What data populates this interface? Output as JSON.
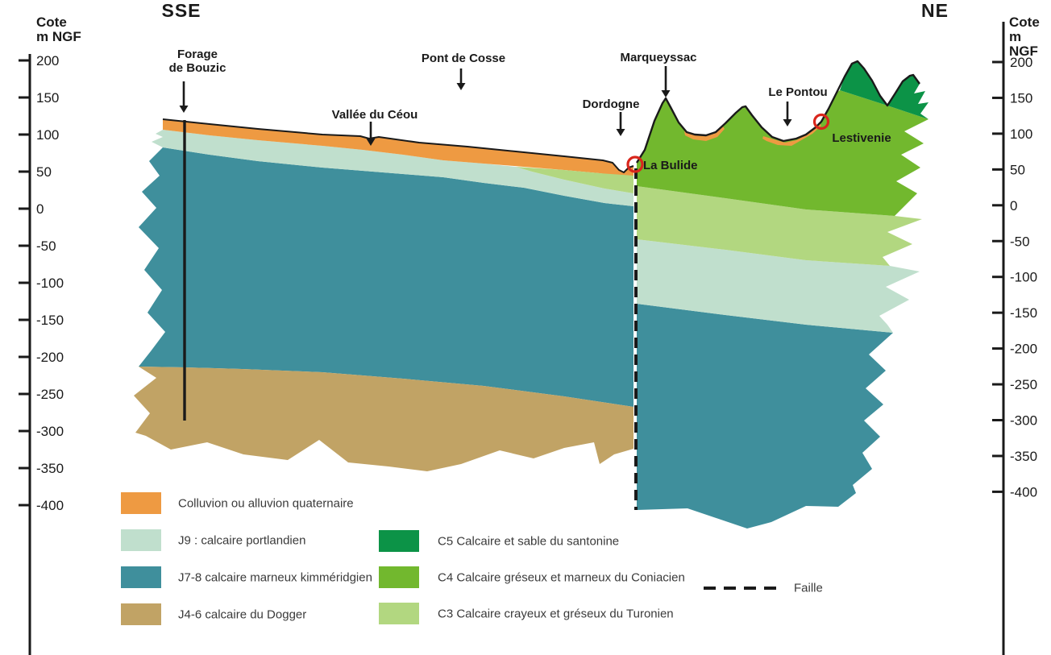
{
  "header": {
    "left_direction": "SSE",
    "right_direction": "NE"
  },
  "axis": {
    "title_line1": "Cote",
    "title_line2": "m NGF",
    "ticks": [
      200,
      150,
      100,
      50,
      0,
      -50,
      -100,
      -150,
      -200,
      -250,
      -300,
      -350,
      -400
    ]
  },
  "landmarks": [
    {
      "id": "forage-de-bouzic",
      "label": "Forage\nde Bouzic",
      "has_arrow": true
    },
    {
      "id": "pont-de-cosse",
      "label": "Pont de Cosse",
      "has_arrow": true
    },
    {
      "id": "vallee-du-ceou",
      "label": "Vallée du Céou",
      "has_arrow": true
    },
    {
      "id": "marqueyssac",
      "label": "Marqueyssac",
      "has_arrow": true
    },
    {
      "id": "dordogne",
      "label": "Dordogne",
      "has_arrow": true
    },
    {
      "id": "le-pontou",
      "label": "Le Pontou",
      "has_arrow": true
    },
    {
      "id": "lestivenie",
      "label": "Lestivenie",
      "has_arrow": false
    },
    {
      "id": "la-bulide",
      "label": "La Bulide",
      "has_arrow": false
    }
  ],
  "legend": {
    "left_column": [
      {
        "id": "quaternaire",
        "label": "Colluvion ou alluvion quaternaire",
        "color": "#EE9A42"
      },
      {
        "id": "j9",
        "label": "J9 : calcaire portlandien",
        "color": "#C0DFCD"
      },
      {
        "id": "j7-8",
        "label": "J7-8 calcaire marneux kimméridgien",
        "color": "#3F8F9C"
      },
      {
        "id": "j4-6",
        "label": "J4-6 calcaire du Dogger",
        "color": "#C1A365"
      }
    ],
    "right_column": [
      {
        "id": "c5",
        "label": "C5 Calcaire et sable du santonine",
        "color": "#0C9347"
      },
      {
        "id": "c4",
        "label": "C4 Calcaire gréseux et marneux du Coniacien",
        "color": "#72B82E"
      },
      {
        "id": "c3",
        "label": "C3 Calcaire crayeux et gréseux du Turonien",
        "color": "#B2D780"
      }
    ],
    "fault": {
      "label": "Faille",
      "color": "#1A1A1A"
    }
  },
  "markers": {
    "spring_circle_color": "#D9261C",
    "springs": [
      "La Bulide",
      "Lestivenie"
    ]
  }
}
